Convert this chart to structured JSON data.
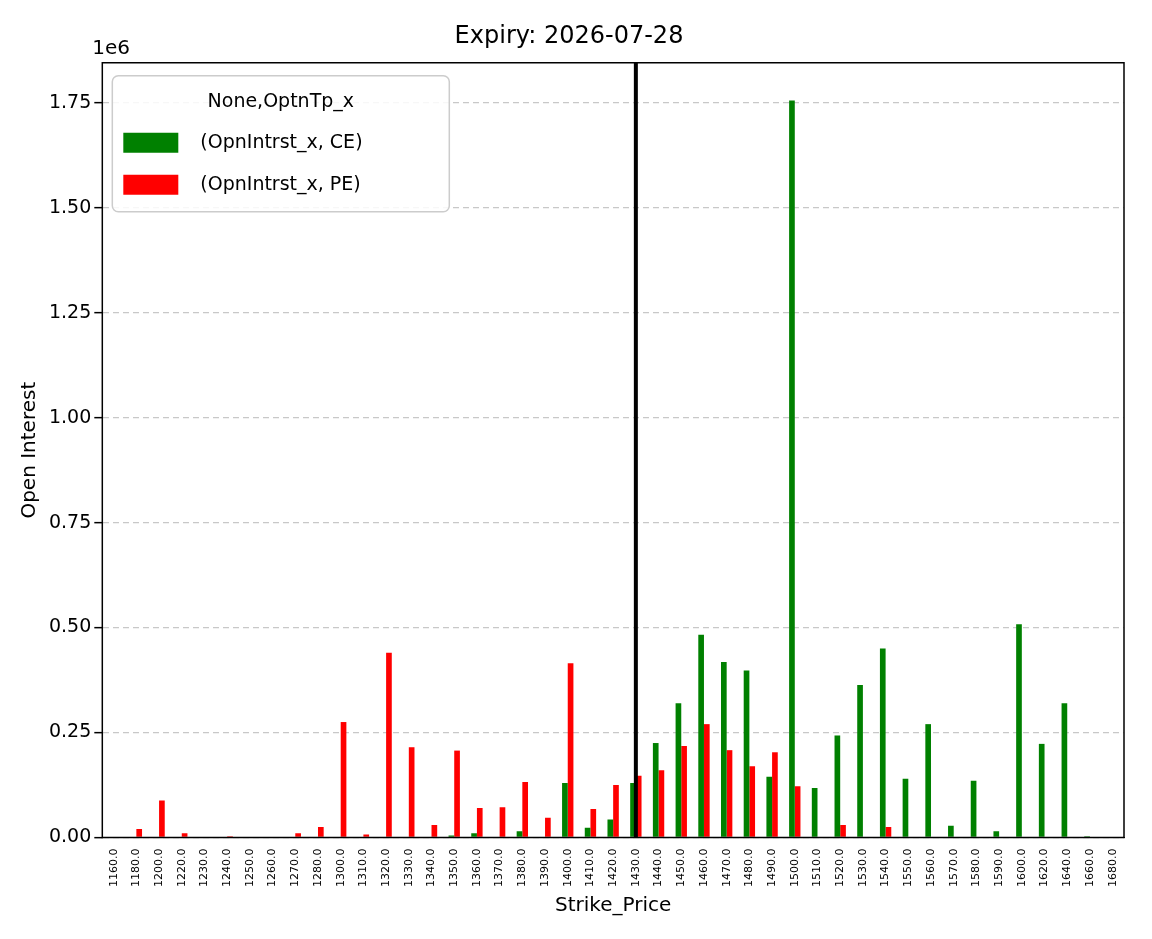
{
  "chart_data": {
    "type": "bar",
    "title": "Expiry: 2026-07-28",
    "xlabel": "Strike_Price",
    "ylabel": "Open Interest",
    "legend_title": "None,OptnTp_x",
    "annotations": [
      "1e6"
    ],
    "categories": [
      "1160.0",
      "1180.0",
      "1200.0",
      "1220.0",
      "1230.0",
      "1240.0",
      "1250.0",
      "1260.0",
      "1270.0",
      "1280.0",
      "1300.0",
      "1310.0",
      "1320.0",
      "1330.0",
      "1340.0",
      "1350.0",
      "1360.0",
      "1370.0",
      "1380.0",
      "1390.0",
      "1400.0",
      "1410.0",
      "1420.0",
      "1430.0",
      "1440.0",
      "1450.0",
      "1460.0",
      "1470.0",
      "1480.0",
      "1490.0",
      "1500.0",
      "1510.0",
      "1520.0",
      "1530.0",
      "1540.0",
      "1550.0",
      "1560.0",
      "1570.0",
      "1580.0",
      "1590.0",
      "1600.0",
      "1620.0",
      "1640.0",
      "1660.0",
      "1680.0"
    ],
    "series": [
      {
        "name": "(OpnIntrst_x, CE)",
        "color": "#008000",
        "values": [
          0,
          0,
          0,
          0,
          0,
          0,
          0,
          0,
          0,
          0,
          0,
          0,
          0,
          0,
          0,
          0.005,
          0.01,
          0,
          0.015,
          0,
          0.13,
          0.023,
          0.043,
          0.13,
          0.225,
          0.32,
          0.483,
          0.418,
          0.398,
          0.145,
          1.755,
          0.118,
          0.243,
          0.363,
          0.45,
          0.14,
          0.27,
          0.028,
          0.135,
          0.015,
          0.508,
          0.223,
          0.32,
          0.003,
          0
        ]
      },
      {
        "name": "(OpnIntrst_x, PE)",
        "color": "#ff0000",
        "values": [
          0,
          0.02,
          0.088,
          0.01,
          0,
          0.003,
          0,
          0,
          0.01,
          0.025,
          0.275,
          0.007,
          0.44,
          0.215,
          0.03,
          0.207,
          0.07,
          0.072,
          0.132,
          0.047,
          0.415,
          0.068,
          0.125,
          0.147,
          0.16,
          0.218,
          0.27,
          0.208,
          0.17,
          0.203,
          0.122,
          0,
          0.03,
          0,
          0.025,
          0,
          0,
          0,
          0,
          0,
          0,
          0,
          0,
          0,
          0
        ]
      }
    ],
    "ylim": [
      0,
      1.845
    ],
    "yticks": [
      {
        "value": 0,
        "label": "0.00"
      },
      {
        "value": 0.25,
        "label": "0.25"
      },
      {
        "value": 0.5,
        "label": "0.50"
      },
      {
        "value": 0.75,
        "label": "0.75"
      },
      {
        "value": 1,
        "label": "1.00"
      },
      {
        "value": 1.25,
        "label": "1.25"
      },
      {
        "value": 1.5,
        "label": "1.50"
      },
      {
        "value": 1.75,
        "label": "1.75"
      }
    ],
    "ref_lines": [
      {
        "axis": "x",
        "value": "1430.0",
        "color": "#000000"
      }
    ],
    "grid": "y",
    "legend": "top left"
  }
}
